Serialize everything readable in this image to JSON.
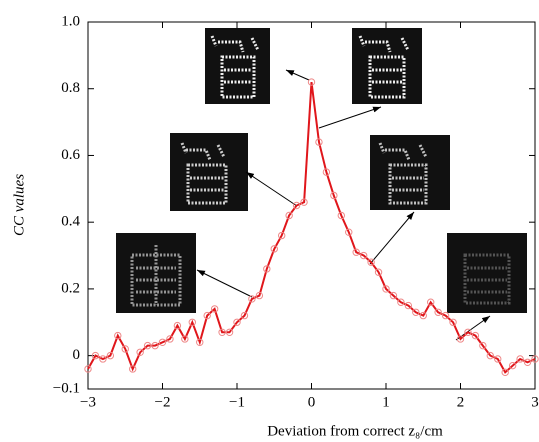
{
  "chart_data": {
    "type": "line",
    "xlabel": "Deviation from correct z₈/cm",
    "ylabel": "CC values",
    "x": [
      -3.0,
      -2.9,
      -2.8,
      -2.7,
      -2.6,
      -2.5,
      -2.4,
      -2.3,
      -2.2,
      -2.1,
      -2.0,
      -1.9,
      -1.8,
      -1.7,
      -1.6,
      -1.5,
      -1.4,
      -1.3,
      -1.2,
      -1.1,
      -1.0,
      -0.9,
      -0.8,
      -0.7,
      -0.6,
      -0.5,
      -0.4,
      -0.3,
      -0.2,
      -0.1,
      0.0,
      0.1,
      0.2,
      0.3,
      0.4,
      0.5,
      0.6,
      0.7,
      0.8,
      0.9,
      1.0,
      1.1,
      1.2,
      1.3,
      1.4,
      1.5,
      1.6,
      1.7,
      1.8,
      1.9,
      2.0,
      2.1,
      2.2,
      2.3,
      2.4,
      2.5,
      2.6,
      2.7,
      2.8,
      2.9,
      3.0
    ],
    "series": [
      {
        "color": "#e0161b",
        "values": [
          -0.04,
          0.0,
          -0.01,
          0.0,
          0.06,
          0.02,
          -0.04,
          0.01,
          0.03,
          0.03,
          0.04,
          0.05,
          0.09,
          0.05,
          0.1,
          0.04,
          0.12,
          0.14,
          0.07,
          0.07,
          0.1,
          0.12,
          0.17,
          0.18,
          0.26,
          0.32,
          0.36,
          0.42,
          0.45,
          0.46,
          0.82,
          0.64,
          0.55,
          0.48,
          0.42,
          0.37,
          0.31,
          0.3,
          0.28,
          0.25,
          0.2,
          0.18,
          0.16,
          0.15,
          0.13,
          0.12,
          0.16,
          0.13,
          0.12,
          0.1,
          0.05,
          0.07,
          0.06,
          0.03,
          0.0,
          -0.01,
          -0.05,
          -0.03,
          -0.01,
          -0.02,
          -0.01
        ]
      }
    ],
    "xlim": [
      -3,
      3
    ],
    "xticks": [
      {
        "value": -3,
        "label": "−3"
      },
      {
        "value": -2,
        "label": "−2"
      },
      {
        "value": -1,
        "label": "−1"
      },
      0,
      1,
      2,
      3
    ],
    "ylim": [
      -0.1,
      1.0
    ],
    "yticks": [
      {
        "value": -0.1,
        "label": "−0.1"
      },
      0,
      0.2,
      0.4,
      0.6,
      0.8,
      {
        "value": 1.0,
        "label": "1.0"
      }
    ]
  }
}
